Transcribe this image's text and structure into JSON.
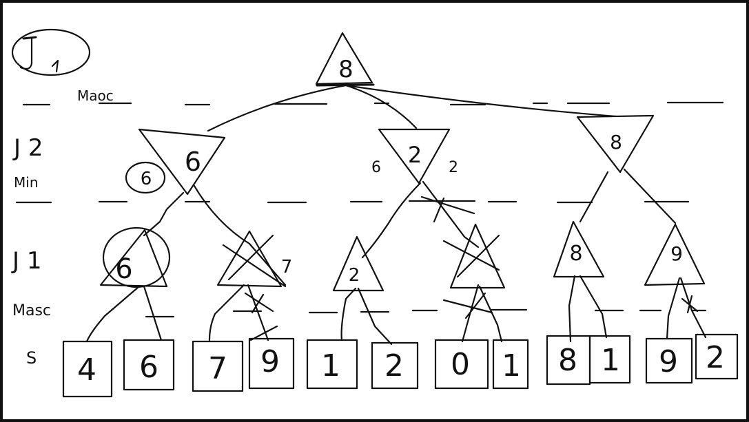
{
  "labels": {
    "player_top": "J 1",
    "row1_mode": "Maoc",
    "row2_player": "J 2",
    "row2_mode": "Min",
    "row3_player": "J 1",
    "row4_mode": "Masc",
    "row5": "S"
  },
  "root": {
    "value": "8"
  },
  "min_nodes": [
    {
      "value": "6",
      "circled_note": "6"
    },
    {
      "value": "2",
      "note_left": "6",
      "note_right": "2"
    },
    {
      "value": "8"
    }
  ],
  "max_nodes": [
    {
      "value": "6"
    },
    {
      "value": ""
    },
    {
      "value": "2"
    },
    {
      "value": ""
    },
    {
      "value": "8"
    },
    {
      "value": "9"
    }
  ],
  "extra_notes": {
    "crossed_max_note": "7"
  },
  "leaves": [
    "4",
    "6",
    "7",
    "9",
    "1",
    "2",
    "0",
    "1",
    "8",
    "1",
    "9",
    "2"
  ]
}
